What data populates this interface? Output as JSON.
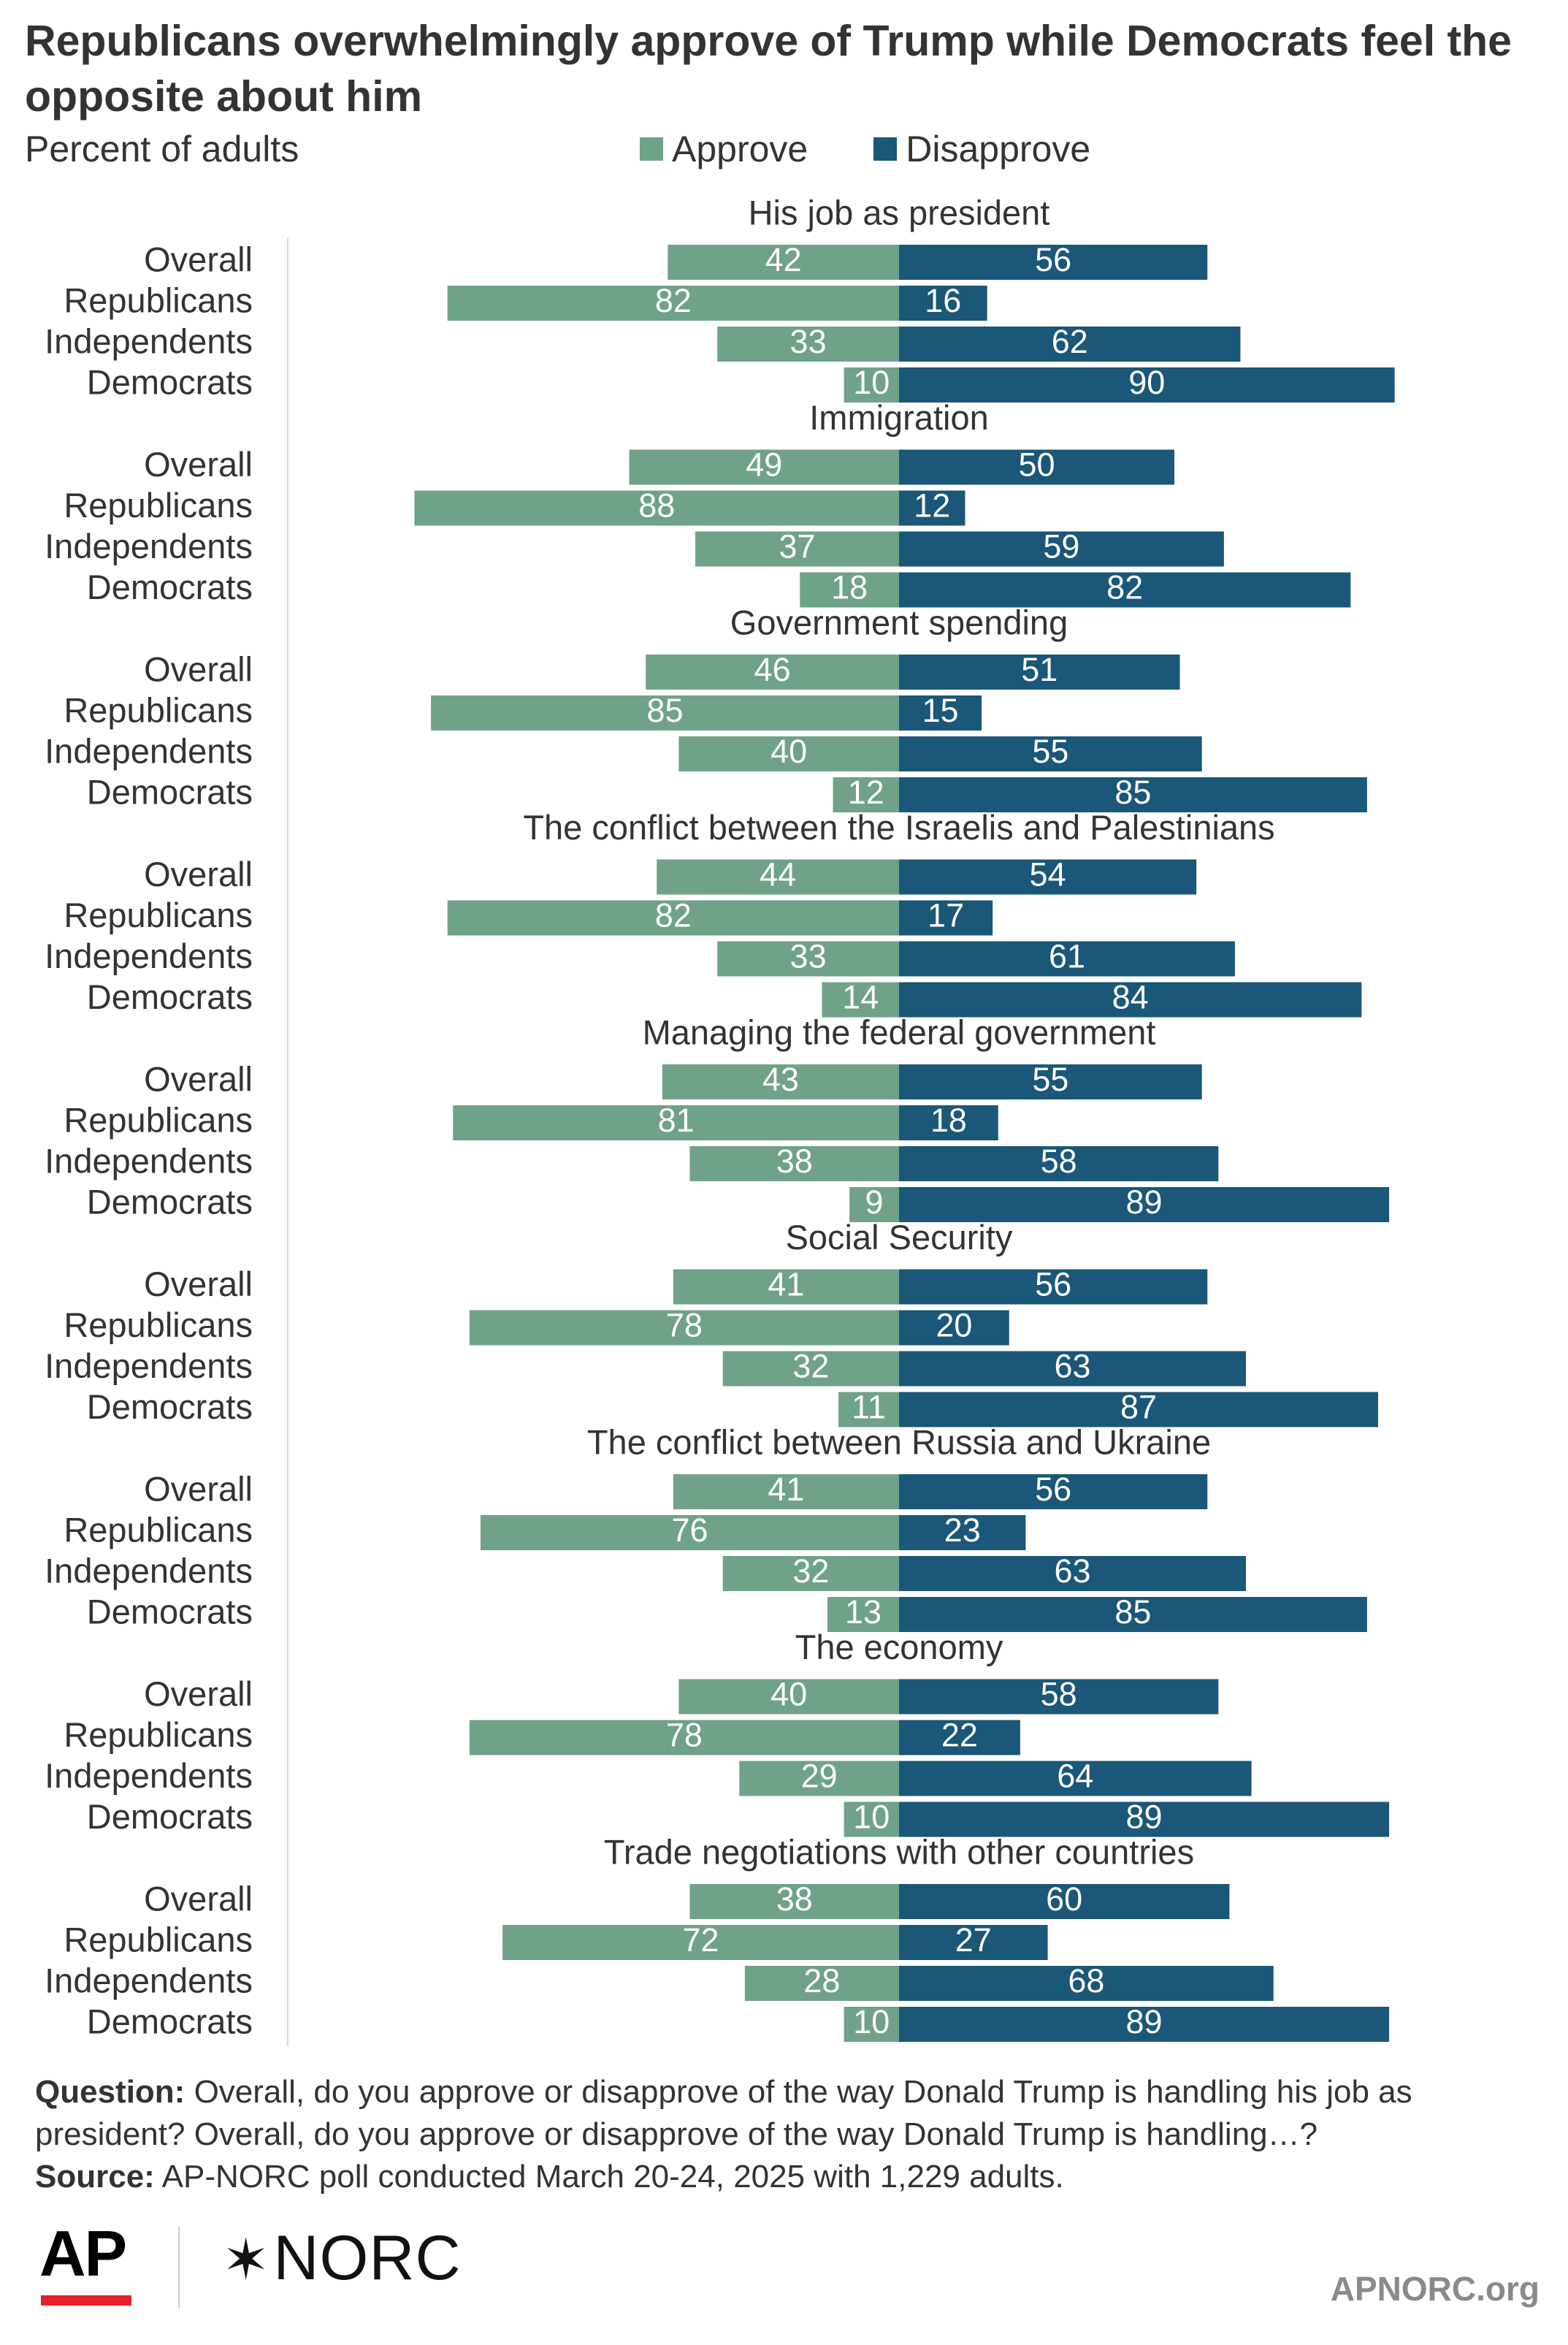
{
  "title": "Republicans overwhelmingly approve of Trump while Democrats feel the opposite about him",
  "subtitle": "Percent of adults",
  "legend": [
    {
      "label": "Approve",
      "color": "#6fa289"
    },
    {
      "label": "Disapprove",
      "color": "#1a5778"
    }
  ],
  "chart_data": {
    "type": "bar",
    "orientation": "horizontal-diverging",
    "unit": "Percent of adults",
    "groups_order": [
      "Overall",
      "Republicans",
      "Independents",
      "Democrats"
    ],
    "series": [
      {
        "name": "Approve",
        "color": "#6fa289"
      },
      {
        "name": "Disapprove",
        "color": "#1a5778"
      }
    ],
    "panels": [
      {
        "title": "His job as president",
        "rows": [
          {
            "label": "Overall",
            "approve": 42,
            "disapprove": 56
          },
          {
            "label": "Republicans",
            "approve": 82,
            "disapprove": 16
          },
          {
            "label": "Independents",
            "approve": 33,
            "disapprove": 62
          },
          {
            "label": "Democrats",
            "approve": 10,
            "disapprove": 90
          }
        ]
      },
      {
        "title": "Immigration",
        "rows": [
          {
            "label": "Overall",
            "approve": 49,
            "disapprove": 50
          },
          {
            "label": "Republicans",
            "approve": 88,
            "disapprove": 12
          },
          {
            "label": "Independents",
            "approve": 37,
            "disapprove": 59
          },
          {
            "label": "Democrats",
            "approve": 18,
            "disapprove": 82
          }
        ]
      },
      {
        "title": "Government spending",
        "rows": [
          {
            "label": "Overall",
            "approve": 46,
            "disapprove": 51
          },
          {
            "label": "Republicans",
            "approve": 85,
            "disapprove": 15
          },
          {
            "label": "Independents",
            "approve": 40,
            "disapprove": 55
          },
          {
            "label": "Democrats",
            "approve": 12,
            "disapprove": 85
          }
        ]
      },
      {
        "title": "The conflict between the Israelis and Palestinians",
        "rows": [
          {
            "label": "Overall",
            "approve": 44,
            "disapprove": 54
          },
          {
            "label": "Republicans",
            "approve": 82,
            "disapprove": 17
          },
          {
            "label": "Independents",
            "approve": 33,
            "disapprove": 61
          },
          {
            "label": "Democrats",
            "approve": 14,
            "disapprove": 84
          }
        ]
      },
      {
        "title": "Managing the federal government",
        "rows": [
          {
            "label": "Overall",
            "approve": 43,
            "disapprove": 55
          },
          {
            "label": "Republicans",
            "approve": 81,
            "disapprove": 18
          },
          {
            "label": "Independents",
            "approve": 38,
            "disapprove": 58
          },
          {
            "label": "Democrats",
            "approve": 9,
            "disapprove": 89
          }
        ]
      },
      {
        "title": "Social Security",
        "rows": [
          {
            "label": "Overall",
            "approve": 41,
            "disapprove": 56
          },
          {
            "label": "Republicans",
            "approve": 78,
            "disapprove": 20
          },
          {
            "label": "Independents",
            "approve": 32,
            "disapprove": 63
          },
          {
            "label": "Democrats",
            "approve": 11,
            "disapprove": 87
          }
        ]
      },
      {
        "title": "The conflict between Russia and Ukraine",
        "rows": [
          {
            "label": "Overall",
            "approve": 41,
            "disapprove": 56
          },
          {
            "label": "Republicans",
            "approve": 76,
            "disapprove": 23
          },
          {
            "label": "Independents",
            "approve": 32,
            "disapprove": 63
          },
          {
            "label": "Democrats",
            "approve": 13,
            "disapprove": 85
          }
        ]
      },
      {
        "title": "The economy",
        "rows": [
          {
            "label": "Overall",
            "approve": 40,
            "disapprove": 58
          },
          {
            "label": "Republicans",
            "approve": 78,
            "disapprove": 22
          },
          {
            "label": "Independents",
            "approve": 29,
            "disapprove": 64
          },
          {
            "label": "Democrats",
            "approve": 10,
            "disapprove": 89
          }
        ]
      },
      {
        "title": "Trade negotiations with other countries",
        "rows": [
          {
            "label": "Overall",
            "approve": 38,
            "disapprove": 60
          },
          {
            "label": "Republicans",
            "approve": 72,
            "disapprove": 27
          },
          {
            "label": "Independents",
            "approve": 28,
            "disapprove": 68
          },
          {
            "label": "Democrats",
            "approve": 10,
            "disapprove": 89
          }
        ]
      }
    ]
  },
  "footer": {
    "question_label": "Question:",
    "question_text": "Overall, do you approve or disapprove of the way Donald Trump is handling his job as president? Overall, do you approve or disapprove of the way Donald Trump is handling…?",
    "source_label": "Source:",
    "source_text": "AP-NORC poll conducted March 20-24, 2025 with 1,229 adults."
  },
  "logos": {
    "ap": "AP",
    "norc": "NORC",
    "site": "APNORC.org"
  }
}
